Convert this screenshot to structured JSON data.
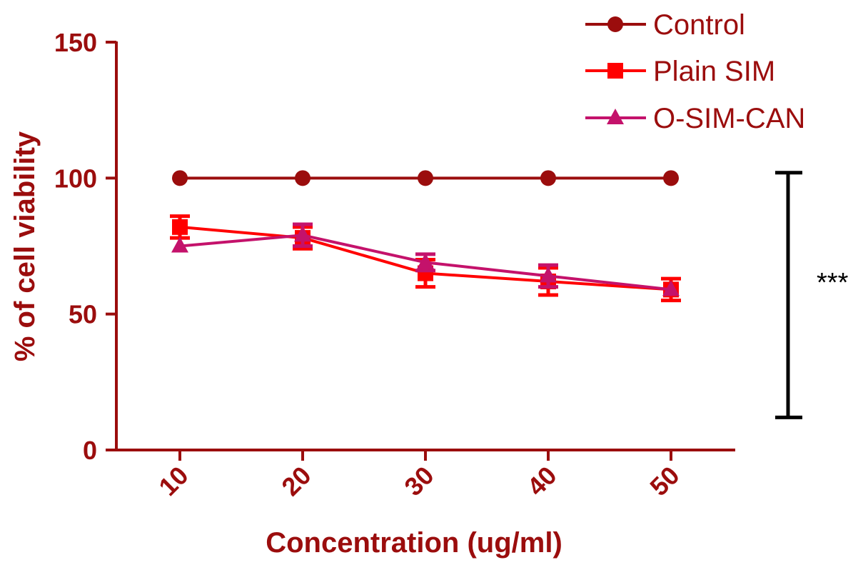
{
  "chart_data": {
    "type": "line",
    "xlabel": "Concentration (ug/ml)",
    "ylabel": "% of cell viability",
    "ylim": [
      0,
      150
    ],
    "yticks": [
      0,
      50,
      100,
      150
    ],
    "x": [
      10,
      20,
      30,
      40,
      50
    ],
    "categories": [
      "10",
      "20",
      "30",
      "40",
      "50"
    ],
    "legend_position": "top-right",
    "series": [
      {
        "name": "Control",
        "marker": "circle",
        "color": "#9b0d0d",
        "values": [
          100,
          100,
          100,
          100,
          100
        ],
        "errors": [
          0,
          0,
          0,
          0,
          0
        ]
      },
      {
        "name": "Plain SIM",
        "marker": "square",
        "color": "#ff0000",
        "values": [
          82,
          78,
          65,
          62,
          59
        ],
        "errors": [
          4,
          4,
          5,
          5,
          4
        ]
      },
      {
        "name": "O-SIM-CAN",
        "marker": "triangle",
        "color": "#c4126b",
        "values": [
          75,
          79,
          69,
          64,
          59
        ],
        "errors": [
          0,
          4,
          3,
          4,
          0
        ]
      }
    ],
    "annotation": {
      "text": "***",
      "range": [
        12,
        102
      ]
    }
  }
}
